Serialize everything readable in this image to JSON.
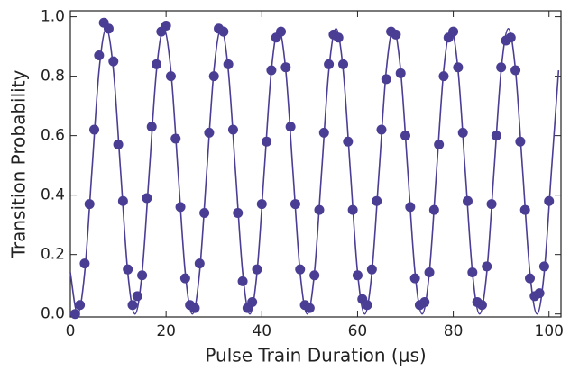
{
  "chart_data": {
    "type": "scatter",
    "x_label": "Pulse Train Duration (μs)",
    "y_label": "Transition Probability",
    "xlim": [
      0,
      102.5
    ],
    "ylim": [
      -0.01,
      1.02
    ],
    "xticks": [
      0,
      20,
      40,
      60,
      80,
      100
    ],
    "yticks": [
      {
        "value": 0,
        "label": "0.0"
      },
      {
        "value": 0.2,
        "label": "0.2"
      },
      {
        "value": 0.4,
        "label": "0.4"
      },
      {
        "value": 0.6,
        "label": "0.6"
      },
      {
        "value": 0.8,
        "label": "0.8"
      },
      {
        "value": 1,
        "label": "1.0"
      }
    ],
    "series": [
      {
        "type": "line",
        "color": "#4a3d94",
        "x": [
          0,
          1.5,
          3,
          4.5,
          6,
          7.5,
          9,
          10.5,
          12,
          13.5,
          15,
          16.5,
          18,
          19.5,
          21,
          22.5,
          24,
          25.5,
          27,
          28.5,
          30,
          31.5,
          33,
          34.5,
          36,
          37.5,
          39,
          40.5,
          42,
          43.5,
          45,
          46.5,
          48,
          49.5,
          51,
          52.5,
          54,
          55.5,
          57,
          58.5,
          60,
          61.5,
          63,
          64.5,
          66,
          67.5,
          69,
          70.5,
          72,
          73.5,
          75,
          76.5,
          78,
          79.5,
          81,
          82.5,
          84,
          85.5,
          87,
          88.5,
          90,
          91.5,
          93,
          94.5,
          96,
          97.5,
          99,
          100.5,
          102
        ],
        "values": [
          0.14,
          0,
          0.14,
          0.48,
          0.82,
          0.96,
          0.82,
          0.48,
          0.14,
          0,
          0.14,
          0.48,
          0.82,
          0.96,
          0.82,
          0.48,
          0.14,
          0,
          0.14,
          0.48,
          0.82,
          0.96,
          0.82,
          0.48,
          0.14,
          0,
          0.14,
          0.48,
          0.82,
          0.96,
          0.82,
          0.48,
          0.14,
          0,
          0.14,
          0.48,
          0.82,
          0.96,
          0.82,
          0.48,
          0.14,
          0,
          0.14,
          0.48,
          0.82,
          0.96,
          0.82,
          0.48,
          0.14,
          0,
          0.14,
          0.48,
          0.82,
          0.96,
          0.82,
          0.48,
          0.14,
          0,
          0.14,
          0.48,
          0.82,
          0.96,
          0.82,
          0.48,
          0.14,
          0,
          0.14,
          0.48,
          0.82
        ]
      },
      {
        "type": "scatter",
        "color": "#4a3d94",
        "x": [
          1,
          2,
          3,
          4,
          5,
          6,
          7,
          8,
          9,
          10,
          11,
          12,
          13,
          14,
          15,
          16,
          17,
          18,
          19,
          20,
          21,
          22,
          23,
          24,
          25,
          26,
          27,
          28,
          29,
          30,
          31,
          32,
          33,
          34,
          35,
          36,
          37,
          38,
          39,
          40,
          41,
          42,
          43,
          44,
          45,
          46,
          47,
          48,
          49,
          50,
          51,
          52,
          53,
          54,
          55,
          56,
          57,
          58,
          59,
          60,
          61,
          62,
          63,
          64,
          65,
          66,
          67,
          68,
          69,
          70,
          71,
          72,
          73,
          74,
          75,
          76,
          77,
          78,
          79,
          80,
          81,
          82,
          83,
          84,
          85,
          86,
          87,
          88,
          89,
          90,
          91,
          92,
          93,
          94,
          95,
          96,
          97,
          98,
          99,
          100
        ],
        "values": [
          0.0,
          0.03,
          0.17,
          0.37,
          0.62,
          0.87,
          0.98,
          0.96,
          0.85,
          0.57,
          0.38,
          0.15,
          0.03,
          0.06,
          0.13,
          0.39,
          0.63,
          0.84,
          0.95,
          0.97,
          0.8,
          0.59,
          0.36,
          0.12,
          0.03,
          0.02,
          0.17,
          0.34,
          0.61,
          0.8,
          0.96,
          0.95,
          0.84,
          0.62,
          0.34,
          0.11,
          0.02,
          0.04,
          0.15,
          0.37,
          0.58,
          0.82,
          0.93,
          0.95,
          0.83,
          0.63,
          0.37,
          0.15,
          0.03,
          0.02,
          0.13,
          0.35,
          0.61,
          0.84,
          0.94,
          0.93,
          0.84,
          0.58,
          0.35,
          0.13,
          0.05,
          0.03,
          0.15,
          0.38,
          0.62,
          0.79,
          0.95,
          0.94,
          0.81,
          0.6,
          0.36,
          0.12,
          0.03,
          0.04,
          0.14,
          0.35,
          0.57,
          0.8,
          0.93,
          0.95,
          0.83,
          0.61,
          0.38,
          0.14,
          0.04,
          0.03,
          0.16,
          0.37,
          0.6,
          0.83,
          0.92,
          0.93,
          0.82,
          0.58,
          0.35,
          0.12,
          0.06,
          0.07,
          0.16,
          0.38
        ]
      }
    ]
  }
}
